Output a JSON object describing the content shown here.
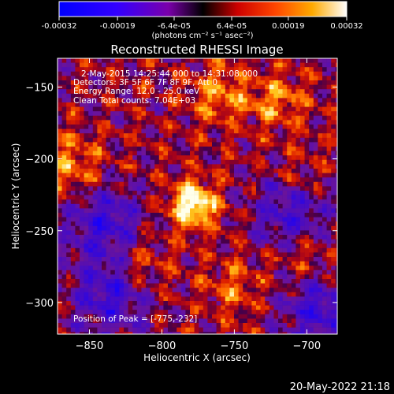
{
  "colorbar": {
    "ticks": [
      "-0.00032",
      "-0.00019",
      "-6.4e-05",
      "6.4e-05",
      "0.00019",
      "0.00032"
    ],
    "label": "(photons cm⁻² s⁻¹ asec⁻²)",
    "range": [
      -0.00032,
      0.00032
    ]
  },
  "chart_data": {
    "type": "heatmap",
    "title": "Reconstructed RHESSI Image",
    "xlabel": "Heliocentric X (arcsec)",
    "ylabel": "Heliocentric Y (arcsec)",
    "xlim": [
      -872,
      -679
    ],
    "ylim": [
      -322,
      -130
    ],
    "xticks": [
      -850,
      -800,
      -750,
      -700
    ],
    "yticks": [
      -150,
      -200,
      -250,
      -300
    ],
    "colormap": "RHESSI rainbow (blue-purple-red-orange-yellow-white)",
    "color_range": [
      -0.00032,
      0.00032
    ],
    "annotations": {
      "time": "2-May-2015 14:25:44.000 to 14:31:08.000",
      "detectors": "Detectors: 3F 5F 6F 7F 8F 9F, Att 0",
      "energy": "Energy Range: 12.0 - 25.0 keV",
      "clean": "Clean     Total counts: 7.04E+03",
      "peak": "Position of Peak = [-775,-232]"
    },
    "peak_position": [
      -775,
      -232
    ],
    "sources": [
      {
        "x": -778,
        "y": -232,
        "amplitude": 1.0
      },
      {
        "x": -860,
        "y": -205,
        "amplitude": 0.5
      },
      {
        "x": -760,
        "y": -155,
        "amplitude": 0.45
      },
      {
        "x": -720,
        "y": -160,
        "amplitude": 0.42
      },
      {
        "x": -705,
        "y": -215,
        "amplitude": 0.35
      },
      {
        "x": -815,
        "y": -275,
        "amplitude": 0.38
      },
      {
        "x": -750,
        "y": -290,
        "amplitude": 0.35
      },
      {
        "x": -700,
        "y": -270,
        "amplitude": 0.3
      }
    ],
    "negative_regions": [
      {
        "x": -835,
        "y": -295
      },
      {
        "x": -690,
        "y": -305
      },
      {
        "x": -710,
        "y": -235
      },
      {
        "x": -840,
        "y": -245
      }
    ]
  },
  "footer": {
    "timestamp": "20-May-2022 21:18"
  }
}
